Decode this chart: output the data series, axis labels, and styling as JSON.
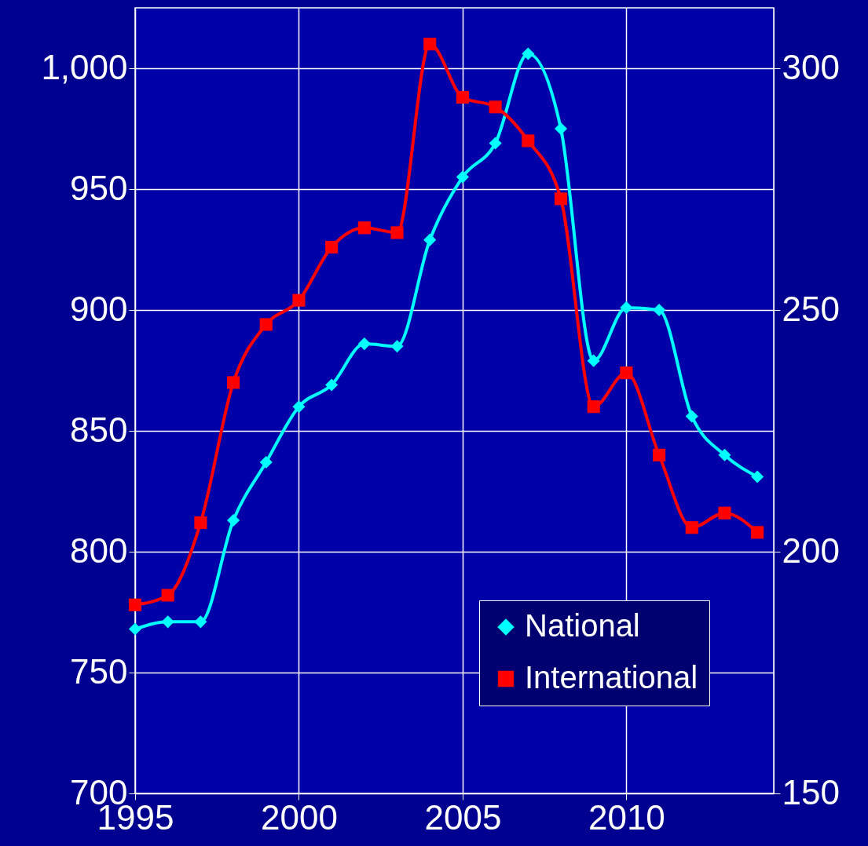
{
  "chart_data": {
    "type": "line",
    "x": [
      1995,
      1996,
      1997,
      1998,
      1999,
      2000,
      2001,
      2002,
      2003,
      2004,
      2005,
      2006,
      2007,
      2008,
      2009,
      2010,
      2011,
      2012,
      2013,
      2014
    ],
    "series": [
      {
        "name": "National",
        "color": "#00ffff",
        "marker": "diamond",
        "values": [
          768,
          771,
          771,
          813,
          837,
          860,
          869,
          886,
          885,
          929,
          955,
          969,
          1006,
          975,
          879,
          901,
          900,
          856,
          840,
          831
        ]
      },
      {
        "name": "International",
        "color": "#ff0000",
        "marker": "square",
        "axis": "y2",
        "values": [
          189,
          191,
          206,
          235,
          247,
          252,
          263,
          267,
          266,
          305,
          294,
          292,
          285,
          273,
          230,
          237,
          220,
          205,
          208,
          204
        ]
      }
    ],
    "xlim": [
      1995,
      2014.5
    ],
    "xticks": [
      1995,
      2000,
      2005,
      2010
    ],
    "ylim": [
      700,
      1025
    ],
    "yticks": [
      700,
      750,
      800,
      850,
      900,
      950,
      {
        "value": 1000,
        "label": "1,000"
      }
    ],
    "y2lim": [
      150,
      312.5
    ],
    "y2ticks": [
      150,
      200,
      250,
      300
    ],
    "grid": true,
    "legend": "bottom right",
    "line_style": "solid"
  }
}
